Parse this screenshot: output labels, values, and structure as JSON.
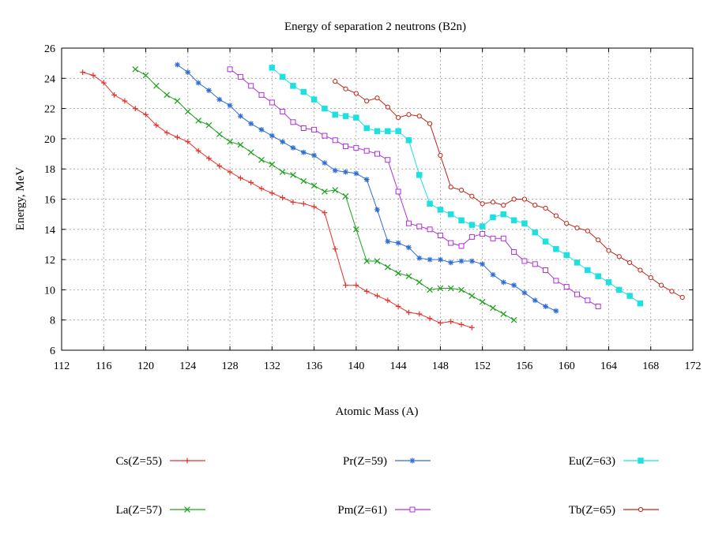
{
  "chart_data": {
    "type": "line",
    "title": "Energy of separation 2 neutrons (B2n)",
    "xlabel": "Atomic Mass (A)",
    "ylabel": "Energy, MeV",
    "xlim": [
      112,
      172
    ],
    "ylim": [
      6,
      26
    ],
    "xticks": [
      112,
      116,
      120,
      124,
      128,
      132,
      136,
      140,
      144,
      148,
      152,
      156,
      160,
      164,
      168,
      172
    ],
    "yticks": [
      6,
      8,
      10,
      12,
      14,
      16,
      18,
      20,
      22,
      24,
      26
    ],
    "grid": true,
    "legend_position": "bottom",
    "series": [
      {
        "name": "Cs(Z=55)",
        "color": "#e8302a",
        "marker": "plus",
        "x": [
          114,
          115,
          116,
          117,
          118,
          119,
          120,
          121,
          122,
          123,
          124,
          125,
          126,
          127,
          128,
          129,
          130,
          131,
          132,
          133,
          134,
          135,
          136,
          137,
          138,
          139,
          140,
          141,
          142,
          143,
          144,
          145,
          146,
          147,
          148,
          149,
          150,
          151
        ],
        "y": [
          24.4,
          24.2,
          23.7,
          22.9,
          22.5,
          22.0,
          21.6,
          20.9,
          20.4,
          20.1,
          19.8,
          19.2,
          18.7,
          18.2,
          17.8,
          17.4,
          17.1,
          16.7,
          16.4,
          16.1,
          15.8,
          15.7,
          15.5,
          15.1,
          12.7,
          10.3,
          10.3,
          9.9,
          9.6,
          9.3,
          8.9,
          8.5,
          8.4,
          8.1,
          7.8,
          7.9,
          7.7,
          7.5
        ]
      },
      {
        "name": "La(Z=57)",
        "color": "#1ea01e",
        "marker": "x",
        "x": [
          119,
          120,
          121,
          122,
          123,
          124,
          125,
          126,
          127,
          128,
          129,
          130,
          131,
          132,
          133,
          134,
          135,
          136,
          137,
          138,
          139,
          140,
          141,
          142,
          143,
          144,
          145,
          146,
          147,
          148,
          149,
          150,
          151,
          152,
          153,
          154,
          155
        ],
        "y": [
          24.6,
          24.2,
          23.5,
          22.9,
          22.5,
          21.8,
          21.2,
          20.9,
          20.3,
          19.8,
          19.6,
          19.1,
          18.6,
          18.3,
          17.8,
          17.6,
          17.2,
          16.9,
          16.5,
          16.6,
          16.2,
          14.0,
          11.9,
          11.9,
          11.5,
          11.1,
          10.9,
          10.5,
          10.0,
          10.1,
          10.1,
          10.0,
          9.6,
          9.2,
          8.8,
          8.4,
          8.0
        ]
      },
      {
        "name": "Pr(Z=59)",
        "color": "#2f6cd6",
        "marker": "star",
        "x": [
          123,
          124,
          125,
          126,
          127,
          128,
          129,
          130,
          131,
          132,
          133,
          134,
          135,
          136,
          137,
          138,
          139,
          140,
          141,
          142,
          143,
          144,
          145,
          146,
          147,
          148,
          149,
          150,
          151,
          152,
          153,
          154,
          155,
          156,
          157,
          158,
          159
        ],
        "y": [
          24.9,
          24.4,
          23.7,
          23.2,
          22.6,
          22.2,
          21.5,
          21.0,
          20.6,
          20.2,
          19.8,
          19.4,
          19.1,
          18.9,
          18.4,
          17.9,
          17.8,
          17.7,
          17.3,
          15.3,
          13.2,
          13.1,
          12.8,
          12.1,
          12.0,
          12.0,
          11.8,
          11.9,
          11.9,
          11.7,
          11.0,
          10.5,
          10.3,
          9.8,
          9.3,
          8.9,
          8.6
        ]
      },
      {
        "name": "Pm(Z=61)",
        "color": "#b030d8",
        "marker": "square-open",
        "x": [
          128,
          129,
          130,
          131,
          132,
          133,
          134,
          135,
          136,
          137,
          138,
          139,
          140,
          141,
          142,
          143,
          144,
          145,
          146,
          147,
          148,
          149,
          150,
          151,
          152,
          153,
          154,
          155,
          156,
          157,
          158,
          159,
          160,
          161,
          162,
          163
        ],
        "y": [
          24.6,
          24.1,
          23.5,
          22.9,
          22.4,
          21.8,
          21.1,
          20.7,
          20.6,
          20.2,
          19.9,
          19.5,
          19.4,
          19.2,
          19.0,
          18.6,
          16.5,
          14.4,
          14.2,
          14.0,
          13.6,
          13.1,
          12.9,
          13.5,
          13.7,
          13.4,
          13.4,
          12.5,
          11.9,
          11.7,
          11.3,
          10.6,
          10.2,
          9.7,
          9.3,
          8.9
        ]
      },
      {
        "name": "Eu(Z=63)",
        "color": "#1ee0e0",
        "marker": "square-filled",
        "x": [
          132,
          133,
          134,
          135,
          136,
          137,
          138,
          139,
          140,
          141,
          142,
          143,
          144,
          145,
          146,
          147,
          148,
          149,
          150,
          151,
          152,
          153,
          154,
          155,
          156,
          157,
          158,
          159,
          160,
          161,
          162,
          163,
          164,
          165,
          166,
          167
        ],
        "y": [
          24.7,
          24.1,
          23.5,
          23.1,
          22.6,
          22.0,
          21.6,
          21.5,
          21.4,
          20.7,
          20.5,
          20.5,
          20.5,
          19.9,
          17.6,
          15.7,
          15.3,
          15.0,
          14.6,
          14.3,
          14.2,
          14.8,
          15.0,
          14.6,
          14.4,
          13.8,
          13.2,
          12.7,
          12.3,
          11.8,
          11.3,
          10.9,
          10.5,
          10.0,
          9.6,
          9.1
        ]
      },
      {
        "name": "Tb(Z=65)",
        "color": "#c02414",
        "marker": "circle-open",
        "x": [
          138,
          139,
          140,
          141,
          142,
          143,
          144,
          145,
          146,
          147,
          148,
          149,
          150,
          151,
          152,
          153,
          154,
          155,
          156,
          157,
          158,
          159,
          160,
          161,
          162,
          163,
          164,
          165,
          166,
          167,
          168,
          169,
          170,
          171
        ],
        "y": [
          23.8,
          23.3,
          23.0,
          22.5,
          22.7,
          22.1,
          21.4,
          21.6,
          21.5,
          21.0,
          18.9,
          16.8,
          16.6,
          16.2,
          15.7,
          15.8,
          15.6,
          16.0,
          16.0,
          15.6,
          15.4,
          14.9,
          14.4,
          14.1,
          13.9,
          13.3,
          12.6,
          12.2,
          11.8,
          11.3,
          10.8,
          10.3,
          9.9,
          9.5
        ]
      }
    ]
  }
}
